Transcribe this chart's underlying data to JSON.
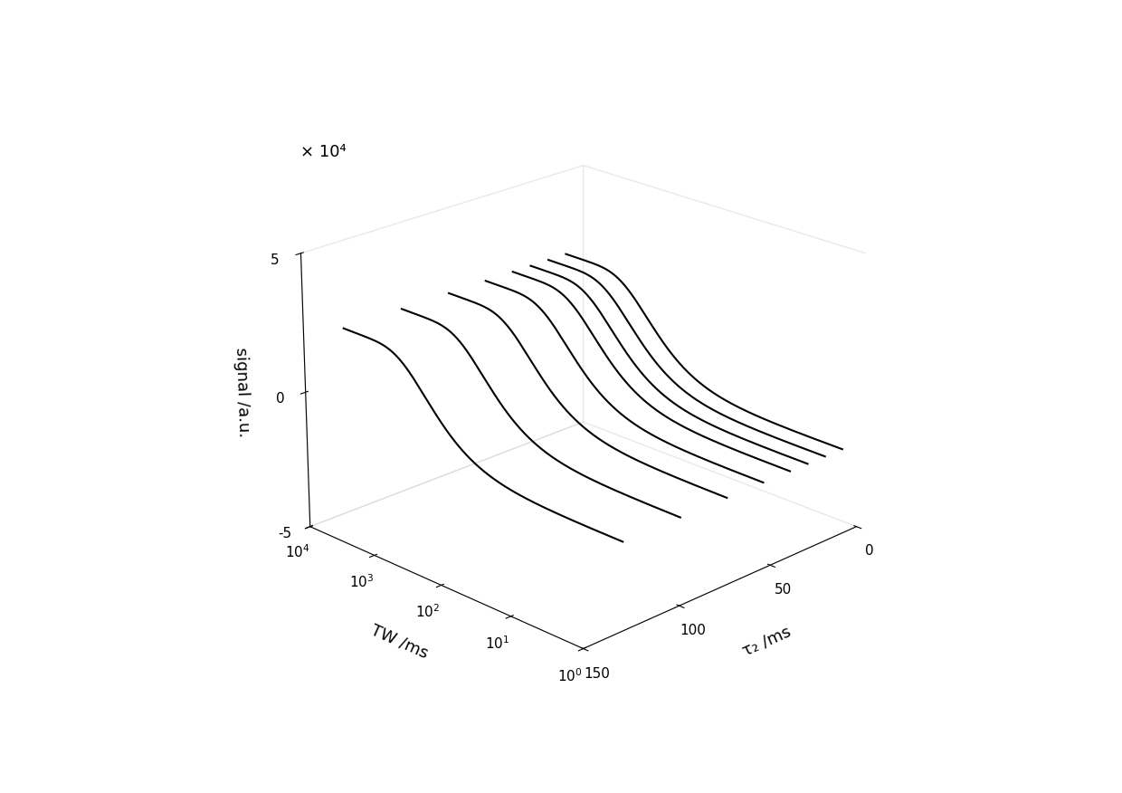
{
  "xlabel": "TW /ms",
  "ylabel": "τ₂ /ms",
  "zlabel": "signal /a.u.",
  "z_scale_label": "× 10⁴",
  "tw_log_min": 0,
  "tw_log_max": 4,
  "tw_points": 400,
  "tau2_values": [
    10,
    20,
    30,
    40,
    55,
    75,
    100,
    130
  ],
  "T2_values": [
    10,
    20,
    30,
    40,
    55,
    75,
    100,
    130
  ],
  "T1": 600,
  "amplitude": 5.0,
  "zlim": [
    -5,
    5
  ],
  "ylim_min": 0,
  "ylim_max": 150,
  "background_color": "#ffffff",
  "line_color": "#000000",
  "line_width": 1.5,
  "elev": 22,
  "azim": -135,
  "xticks_log": [
    0,
    1,
    2,
    3,
    4
  ],
  "xtick_labels": [
    "$10^0$",
    "$10^1$",
    "$10^2$",
    "$10^3$",
    "$10^4$"
  ],
  "yticks": [
    0,
    50,
    100,
    150
  ],
  "ytick_labels": [
    "0",
    "50",
    "100",
    "150"
  ],
  "zticks": [
    -5,
    0,
    5
  ],
  "ztick_labels": [
    "-5",
    "0",
    "5"
  ],
  "fontsize_tick": 11,
  "fontsize_label": 13
}
